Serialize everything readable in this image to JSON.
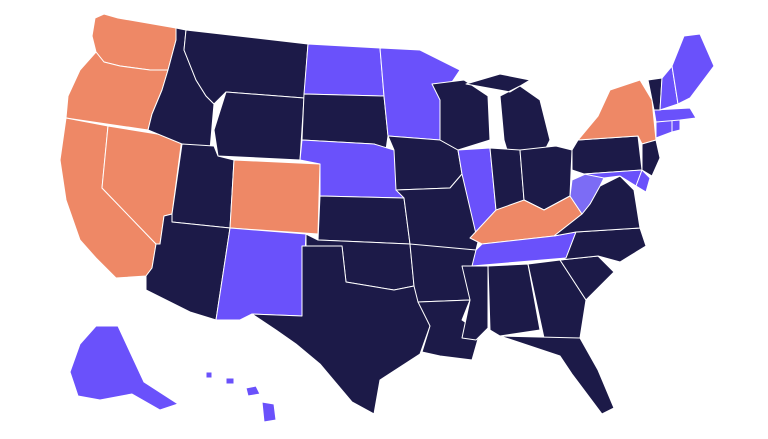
{
  "map": {
    "type": "us-state-choropleth",
    "legend": "none",
    "colors": {
      "dark": "#1c1a48",
      "purple": "#6a51fb",
      "light_purple": "#7c6cf5",
      "orange": "#ee8866",
      "border": "#ffffff",
      "background": "#ffffff"
    },
    "states": [
      {
        "code": "WA",
        "color": "orange"
      },
      {
        "code": "OR",
        "color": "orange"
      },
      {
        "code": "CA",
        "color": "orange"
      },
      {
        "code": "NV",
        "color": "orange"
      },
      {
        "code": "ID",
        "color": "dark"
      },
      {
        "code": "MT",
        "color": "dark"
      },
      {
        "code": "WY",
        "color": "dark"
      },
      {
        "code": "UT",
        "color": "dark"
      },
      {
        "code": "CO",
        "color": "orange"
      },
      {
        "code": "AZ",
        "color": "dark"
      },
      {
        "code": "NM",
        "color": "purple"
      },
      {
        "code": "ND",
        "color": "purple"
      },
      {
        "code": "SD",
        "color": "dark"
      },
      {
        "code": "NE",
        "color": "purple"
      },
      {
        "code": "KS",
        "color": "dark"
      },
      {
        "code": "OK",
        "color": "dark"
      },
      {
        "code": "TX",
        "color": "dark"
      },
      {
        "code": "MN",
        "color": "purple"
      },
      {
        "code": "IA",
        "color": "dark"
      },
      {
        "code": "MO",
        "color": "dark"
      },
      {
        "code": "AR",
        "color": "dark"
      },
      {
        "code": "LA",
        "color": "dark"
      },
      {
        "code": "WI",
        "color": "dark"
      },
      {
        "code": "IL",
        "color": "purple"
      },
      {
        "code": "MI",
        "color": "dark"
      },
      {
        "code": "IN",
        "color": "dark"
      },
      {
        "code": "OH",
        "color": "dark"
      },
      {
        "code": "KY",
        "color": "orange"
      },
      {
        "code": "TN",
        "color": "purple"
      },
      {
        "code": "MS",
        "color": "dark"
      },
      {
        "code": "AL",
        "color": "dark"
      },
      {
        "code": "GA",
        "color": "dark"
      },
      {
        "code": "FL",
        "color": "dark"
      },
      {
        "code": "SC",
        "color": "dark"
      },
      {
        "code": "NC",
        "color": "dark"
      },
      {
        "code": "VA",
        "color": "dark"
      },
      {
        "code": "WV",
        "color": "light_purple"
      },
      {
        "code": "PA",
        "color": "dark"
      },
      {
        "code": "NY",
        "color": "orange"
      },
      {
        "code": "MD",
        "color": "purple"
      },
      {
        "code": "DE",
        "color": "purple"
      },
      {
        "code": "NJ",
        "color": "dark"
      },
      {
        "code": "CT",
        "color": "purple"
      },
      {
        "code": "RI",
        "color": "purple"
      },
      {
        "code": "MA",
        "color": "purple"
      },
      {
        "code": "VT",
        "color": "dark"
      },
      {
        "code": "NH",
        "color": "purple"
      },
      {
        "code": "ME",
        "color": "purple"
      },
      {
        "code": "AK",
        "color": "purple"
      },
      {
        "code": "HI",
        "color": "purple"
      }
    ]
  }
}
